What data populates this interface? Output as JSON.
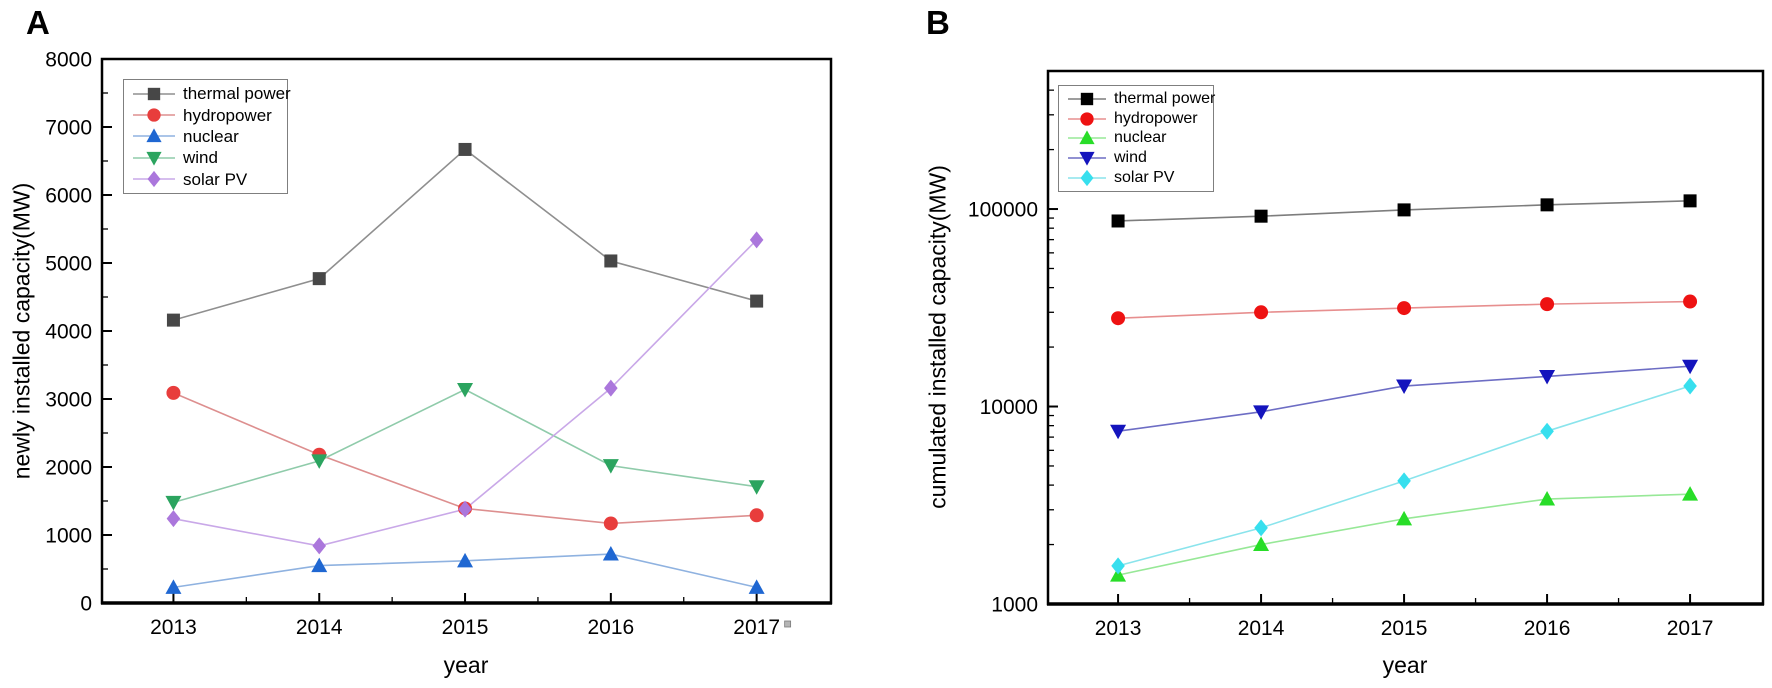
{
  "figure": {
    "background": "#ffffff",
    "description": "Two-panel line chart figure comparing newly installed and cumulated installed power capacity by source, 2013-2017"
  },
  "chart_data": [
    {
      "type": "line",
      "panel_label": "A",
      "title": "",
      "xlabel": "year",
      "ylabel": "newly installed capacity(MW)",
      "yscale": "linear",
      "ylim": [
        0,
        8000
      ],
      "yticks": [
        0,
        1000,
        2000,
        3000,
        4000,
        5000,
        6000,
        7000,
        8000
      ],
      "y_minor_step": 500,
      "categories": [
        "2013",
        "2014",
        "2015",
        "2016",
        "2017"
      ],
      "x_footnote": {
        "after_category": "2017",
        "glyph": "small-gray-square"
      },
      "grid": false,
      "legend_position": "top-left-inside",
      "series": [
        {
          "name": "thermal power",
          "marker": "square",
          "marker_color": "#474747",
          "line_color": "#8f8f8f",
          "values": [
            4160,
            4770,
            6670,
            5030,
            4440
          ]
        },
        {
          "name": "hydropower",
          "marker": "circle",
          "marker_color": "#e83d3c",
          "line_color": "#dd8f8f",
          "values": [
            3090,
            2180,
            1390,
            1170,
            1290
          ]
        },
        {
          "name": "nuclear",
          "marker": "triangle-up",
          "marker_color": "#1f67d2",
          "line_color": "#8fb2e0",
          "values": [
            230,
            550,
            620,
            720,
            230
          ]
        },
        {
          "name": "wind",
          "marker": "triangle-down",
          "marker_color": "#2ba45f",
          "line_color": "#8fcbaa",
          "values": [
            1480,
            2090,
            3140,
            2020,
            1710
          ]
        },
        {
          "name": "solar PV",
          "marker": "diamond",
          "marker_color": "#ab77dc",
          "line_color": "#c9a8e8",
          "values": [
            1240,
            840,
            1380,
            3160,
            5340
          ]
        }
      ]
    },
    {
      "type": "line",
      "panel_label": "B",
      "title": "",
      "xlabel": "year",
      "ylabel": "cumulated installed capacity(MW)",
      "yscale": "log",
      "ylim": [
        1000,
        500000
      ],
      "yticks": [
        1000,
        10000,
        100000
      ],
      "categories": [
        "2013",
        "2014",
        "2015",
        "2016",
        "2017"
      ],
      "grid": false,
      "legend_position": "top-left-inside",
      "series": [
        {
          "name": "thermal power",
          "marker": "square",
          "marker_color": "#000000",
          "line_color": "#7d7d7d",
          "values": [
            87000,
            92000,
            99000,
            105000,
            110000
          ]
        },
        {
          "name": "hydropower",
          "marker": "circle",
          "marker_color": "#ee1212",
          "line_color": "#e78f8f",
          "values": [
            28000,
            30000,
            31500,
            33000,
            34000
          ]
        },
        {
          "name": "nuclear",
          "marker": "triangle-up",
          "marker_color": "#28dd28",
          "line_color": "#97e897",
          "values": [
            1400,
            2000,
            2700,
            3400,
            3600
          ]
        },
        {
          "name": "wind",
          "marker": "triangle-down",
          "marker_color": "#1414bd",
          "line_color": "#6d6dc4",
          "values": [
            7500,
            9400,
            12700,
            14200,
            16000
          ]
        },
        {
          "name": "solar PV",
          "marker": "diamond",
          "marker_color": "#37dfee",
          "line_color": "#8ae4ec",
          "values": [
            1560,
            2430,
            4200,
            7500,
            12700
          ]
        }
      ]
    }
  ]
}
